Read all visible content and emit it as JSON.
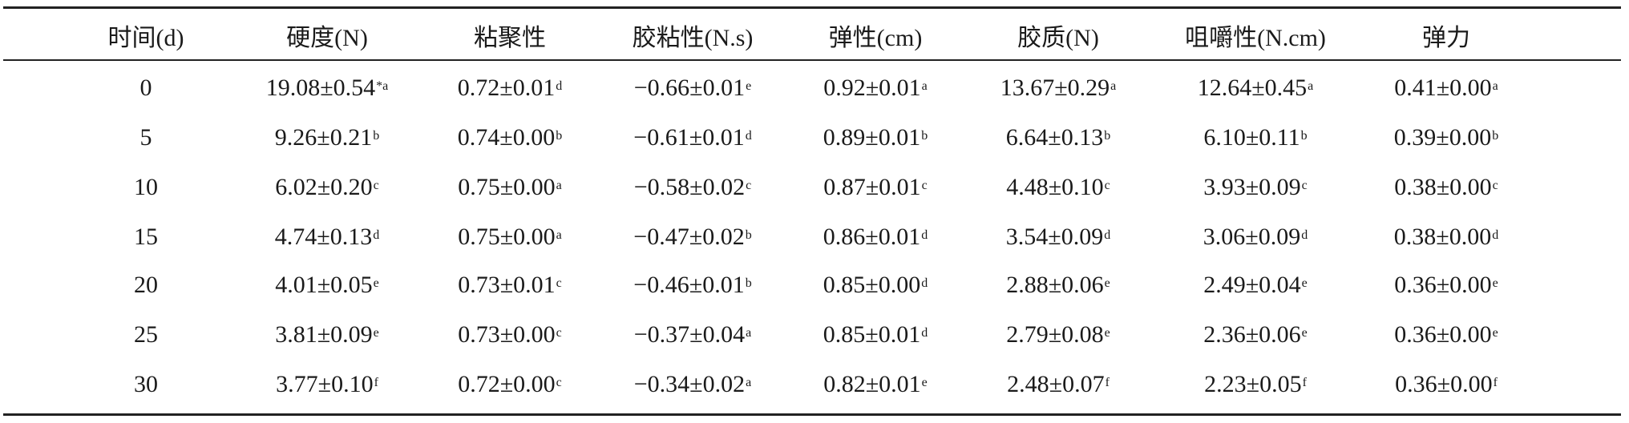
{
  "table": {
    "headers": [
      "时间(d)",
      "硬度(N)",
      "粘聚性",
      "胶粘性(N.s)",
      "弹性(cm)",
      "胶质(N)",
      "咀嚼性(N.cm)",
      "弹力"
    ],
    "rows": [
      [
        {
          "v": "0",
          "s": ""
        },
        {
          "v": "19.08±0.54",
          "s": "*a"
        },
        {
          "v": "0.72±0.01",
          "s": "d"
        },
        {
          "v": "−0.66±0.01",
          "s": "e"
        },
        {
          "v": "0.92±0.01",
          "s": "a"
        },
        {
          "v": "13.67±0.29",
          "s": "a"
        },
        {
          "v": "12.64±0.45",
          "s": "a"
        },
        {
          "v": "0.41±0.00",
          "s": "a"
        }
      ],
      [
        {
          "v": "5",
          "s": ""
        },
        {
          "v": "9.26±0.21",
          "s": "b"
        },
        {
          "v": "0.74±0.00",
          "s": "b"
        },
        {
          "v": "−0.61±0.01",
          "s": "d"
        },
        {
          "v": "0.89±0.01",
          "s": "b"
        },
        {
          "v": "6.64±0.13",
          "s": "b"
        },
        {
          "v": "6.10±0.11",
          "s": "b"
        },
        {
          "v": "0.39±0.00",
          "s": "b"
        }
      ],
      [
        {
          "v": "10",
          "s": ""
        },
        {
          "v": "6.02±0.20",
          "s": "c"
        },
        {
          "v": "0.75±0.00",
          "s": "a"
        },
        {
          "v": "−0.58±0.02",
          "s": "c"
        },
        {
          "v": "0.87±0.01",
          "s": "c"
        },
        {
          "v": "4.48±0.10",
          "s": "c"
        },
        {
          "v": "3.93±0.09",
          "s": "c"
        },
        {
          "v": "0.38±0.00",
          "s": "c"
        }
      ],
      [
        {
          "v": "15",
          "s": ""
        },
        {
          "v": "4.74±0.13",
          "s": "d"
        },
        {
          "v": "0.75±0.00",
          "s": "a"
        },
        {
          "v": "−0.47±0.02",
          "s": "b"
        },
        {
          "v": "0.86±0.01",
          "s": "d"
        },
        {
          "v": "3.54±0.09",
          "s": "d"
        },
        {
          "v": "3.06±0.09",
          "s": "d"
        },
        {
          "v": "0.38±0.00",
          "s": "d"
        }
      ],
      [
        {
          "v": "20",
          "s": ""
        },
        {
          "v": "4.01±0.05",
          "s": "e"
        },
        {
          "v": "0.73±0.01",
          "s": "c"
        },
        {
          "v": "−0.46±0.01",
          "s": "b"
        },
        {
          "v": "0.85±0.00",
          "s": "d"
        },
        {
          "v": "2.88±0.06",
          "s": "e"
        },
        {
          "v": "2.49±0.04",
          "s": "e"
        },
        {
          "v": "0.36±0.00",
          "s": "e"
        }
      ],
      [
        {
          "v": "25",
          "s": ""
        },
        {
          "v": "3.81±0.09",
          "s": "e"
        },
        {
          "v": "0.73±0.00",
          "s": "c"
        },
        {
          "v": "−0.37±0.04",
          "s": "a"
        },
        {
          "v": "0.85±0.01",
          "s": "d"
        },
        {
          "v": "2.79±0.08",
          "s": "e"
        },
        {
          "v": "2.36±0.06",
          "s": "e"
        },
        {
          "v": "0.36±0.00",
          "s": "e"
        }
      ],
      [
        {
          "v": "30",
          "s": ""
        },
        {
          "v": "3.77±0.10",
          "s": "f"
        },
        {
          "v": "0.72±0.00",
          "s": "c"
        },
        {
          "v": "−0.34±0.02",
          "s": "a"
        },
        {
          "v": "0.82±0.01",
          "s": "e"
        },
        {
          "v": "2.48±0.07",
          "s": "f"
        },
        {
          "v": "2.23±0.05",
          "s": "f"
        },
        {
          "v": "0.36±0.00",
          "s": "f"
        }
      ]
    ]
  }
}
